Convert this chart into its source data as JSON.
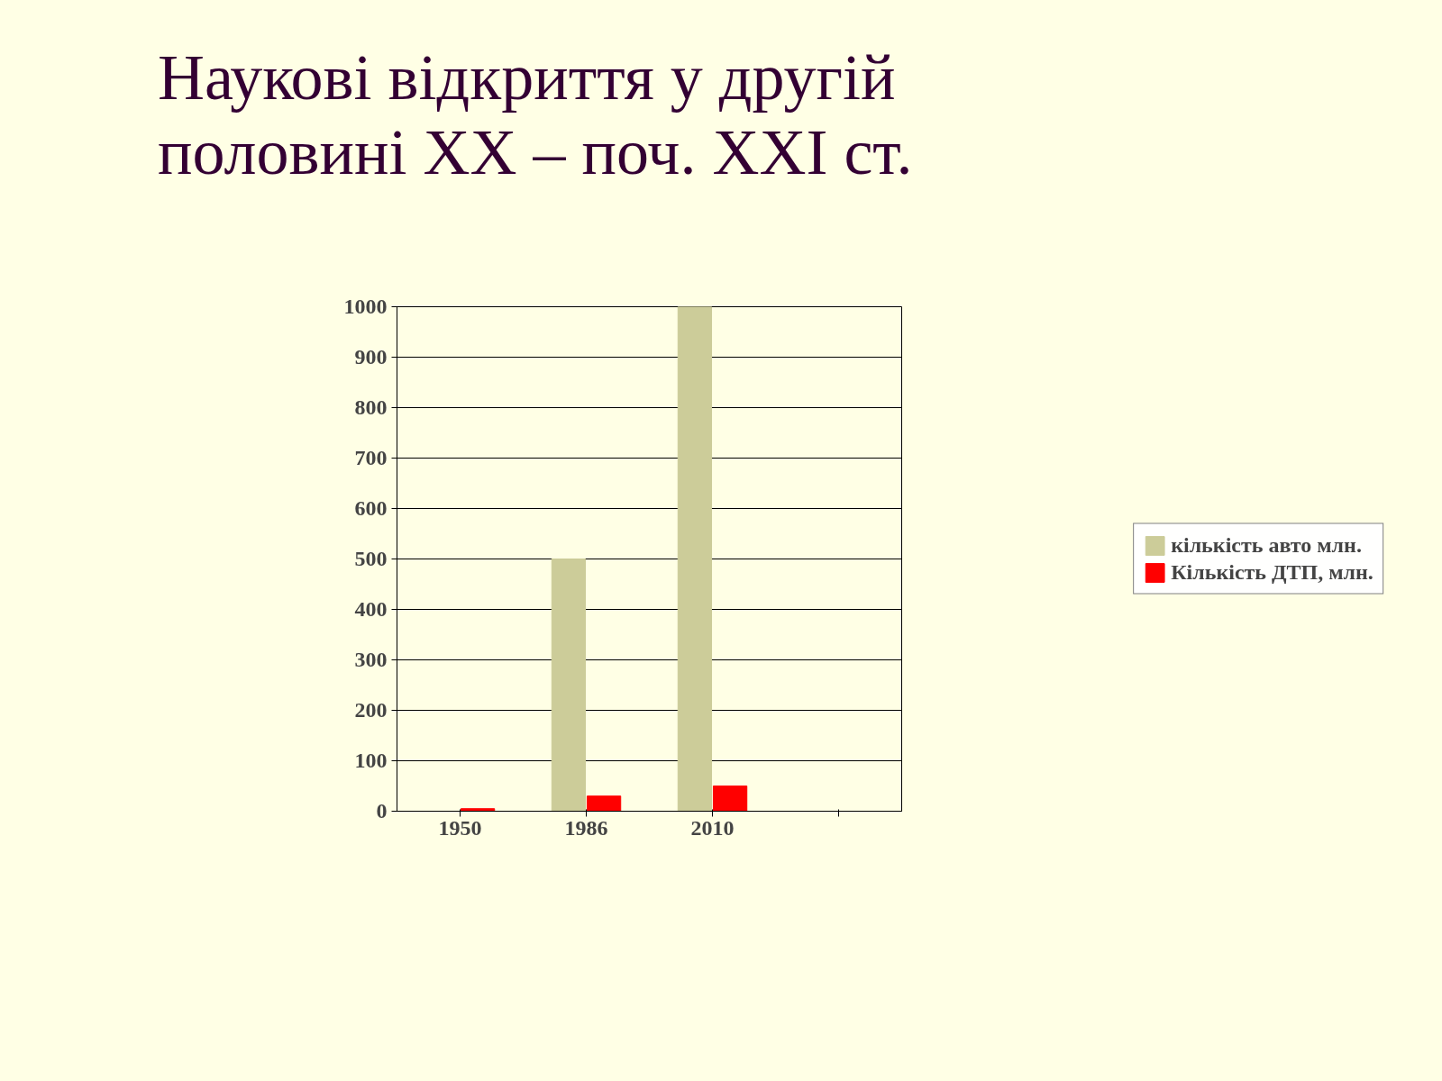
{
  "chart_data": {
    "type": "bar",
    "title": "Наукові відкриття у другій половині ХХ – поч. ХХІ ст.",
    "categories": [
      "1950",
      "1986",
      "2010",
      null
    ],
    "series": [
      {
        "name": "кількість авто млн.",
        "color": "#cccc99",
        "values": [
          0,
          500,
          1000,
          null
        ]
      },
      {
        "name": "Кількість ДТП, млн.",
        "color": "#ff0000",
        "values": [
          5,
          30,
          50,
          null
        ]
      }
    ],
    "ylim": [
      0,
      1000
    ],
    "yticks": [
      0,
      100,
      200,
      300,
      400,
      500,
      600,
      700,
      800,
      900,
      1000
    ],
    "grid": "y",
    "legend": "right"
  }
}
